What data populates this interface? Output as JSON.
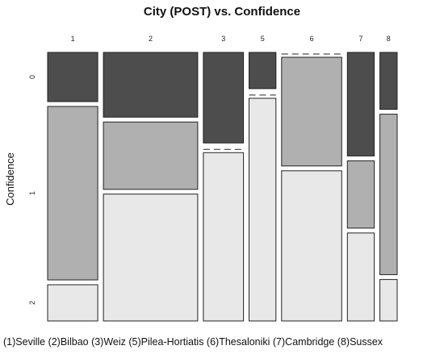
{
  "chart_data": {
    "type": "mosaic",
    "title": "City (POST) vs.  Confidence",
    "xlabel": "",
    "ylabel": "Confidence",
    "levels": [
      "0",
      "1",
      "2"
    ],
    "level_colors": [
      "#4d4d4d",
      "#b0b0b0",
      "#e8e8e8"
    ],
    "columns": [
      {
        "label": "1",
        "width": 0.125,
        "props": [
          0.19,
          0.67,
          0.14
        ]
      },
      {
        "label": "2",
        "width": 0.235,
        "props": [
          0.25,
          0.26,
          0.49
        ]
      },
      {
        "label": "3",
        "width": 0.1,
        "props": [
          0.35,
          0.0,
          0.65
        ]
      },
      {
        "label": "5",
        "width": 0.067,
        "props": [
          0.14,
          0.0,
          0.86
        ]
      },
      {
        "label": "6",
        "width": 0.15,
        "props": [
          0.0,
          0.42,
          0.58
        ]
      },
      {
        "label": "7",
        "width": 0.067,
        "props": [
          0.4,
          0.26,
          0.34
        ]
      },
      {
        "label": "8",
        "width": 0.043,
        "props": [
          0.22,
          0.62,
          0.16
        ]
      }
    ],
    "legend_text": "(1)Seville (2)Bilbao (3)Weiz (5)Pilea-Hortiatis (6)Thesaloniki (7)Cambridge (8)Sussex"
  }
}
